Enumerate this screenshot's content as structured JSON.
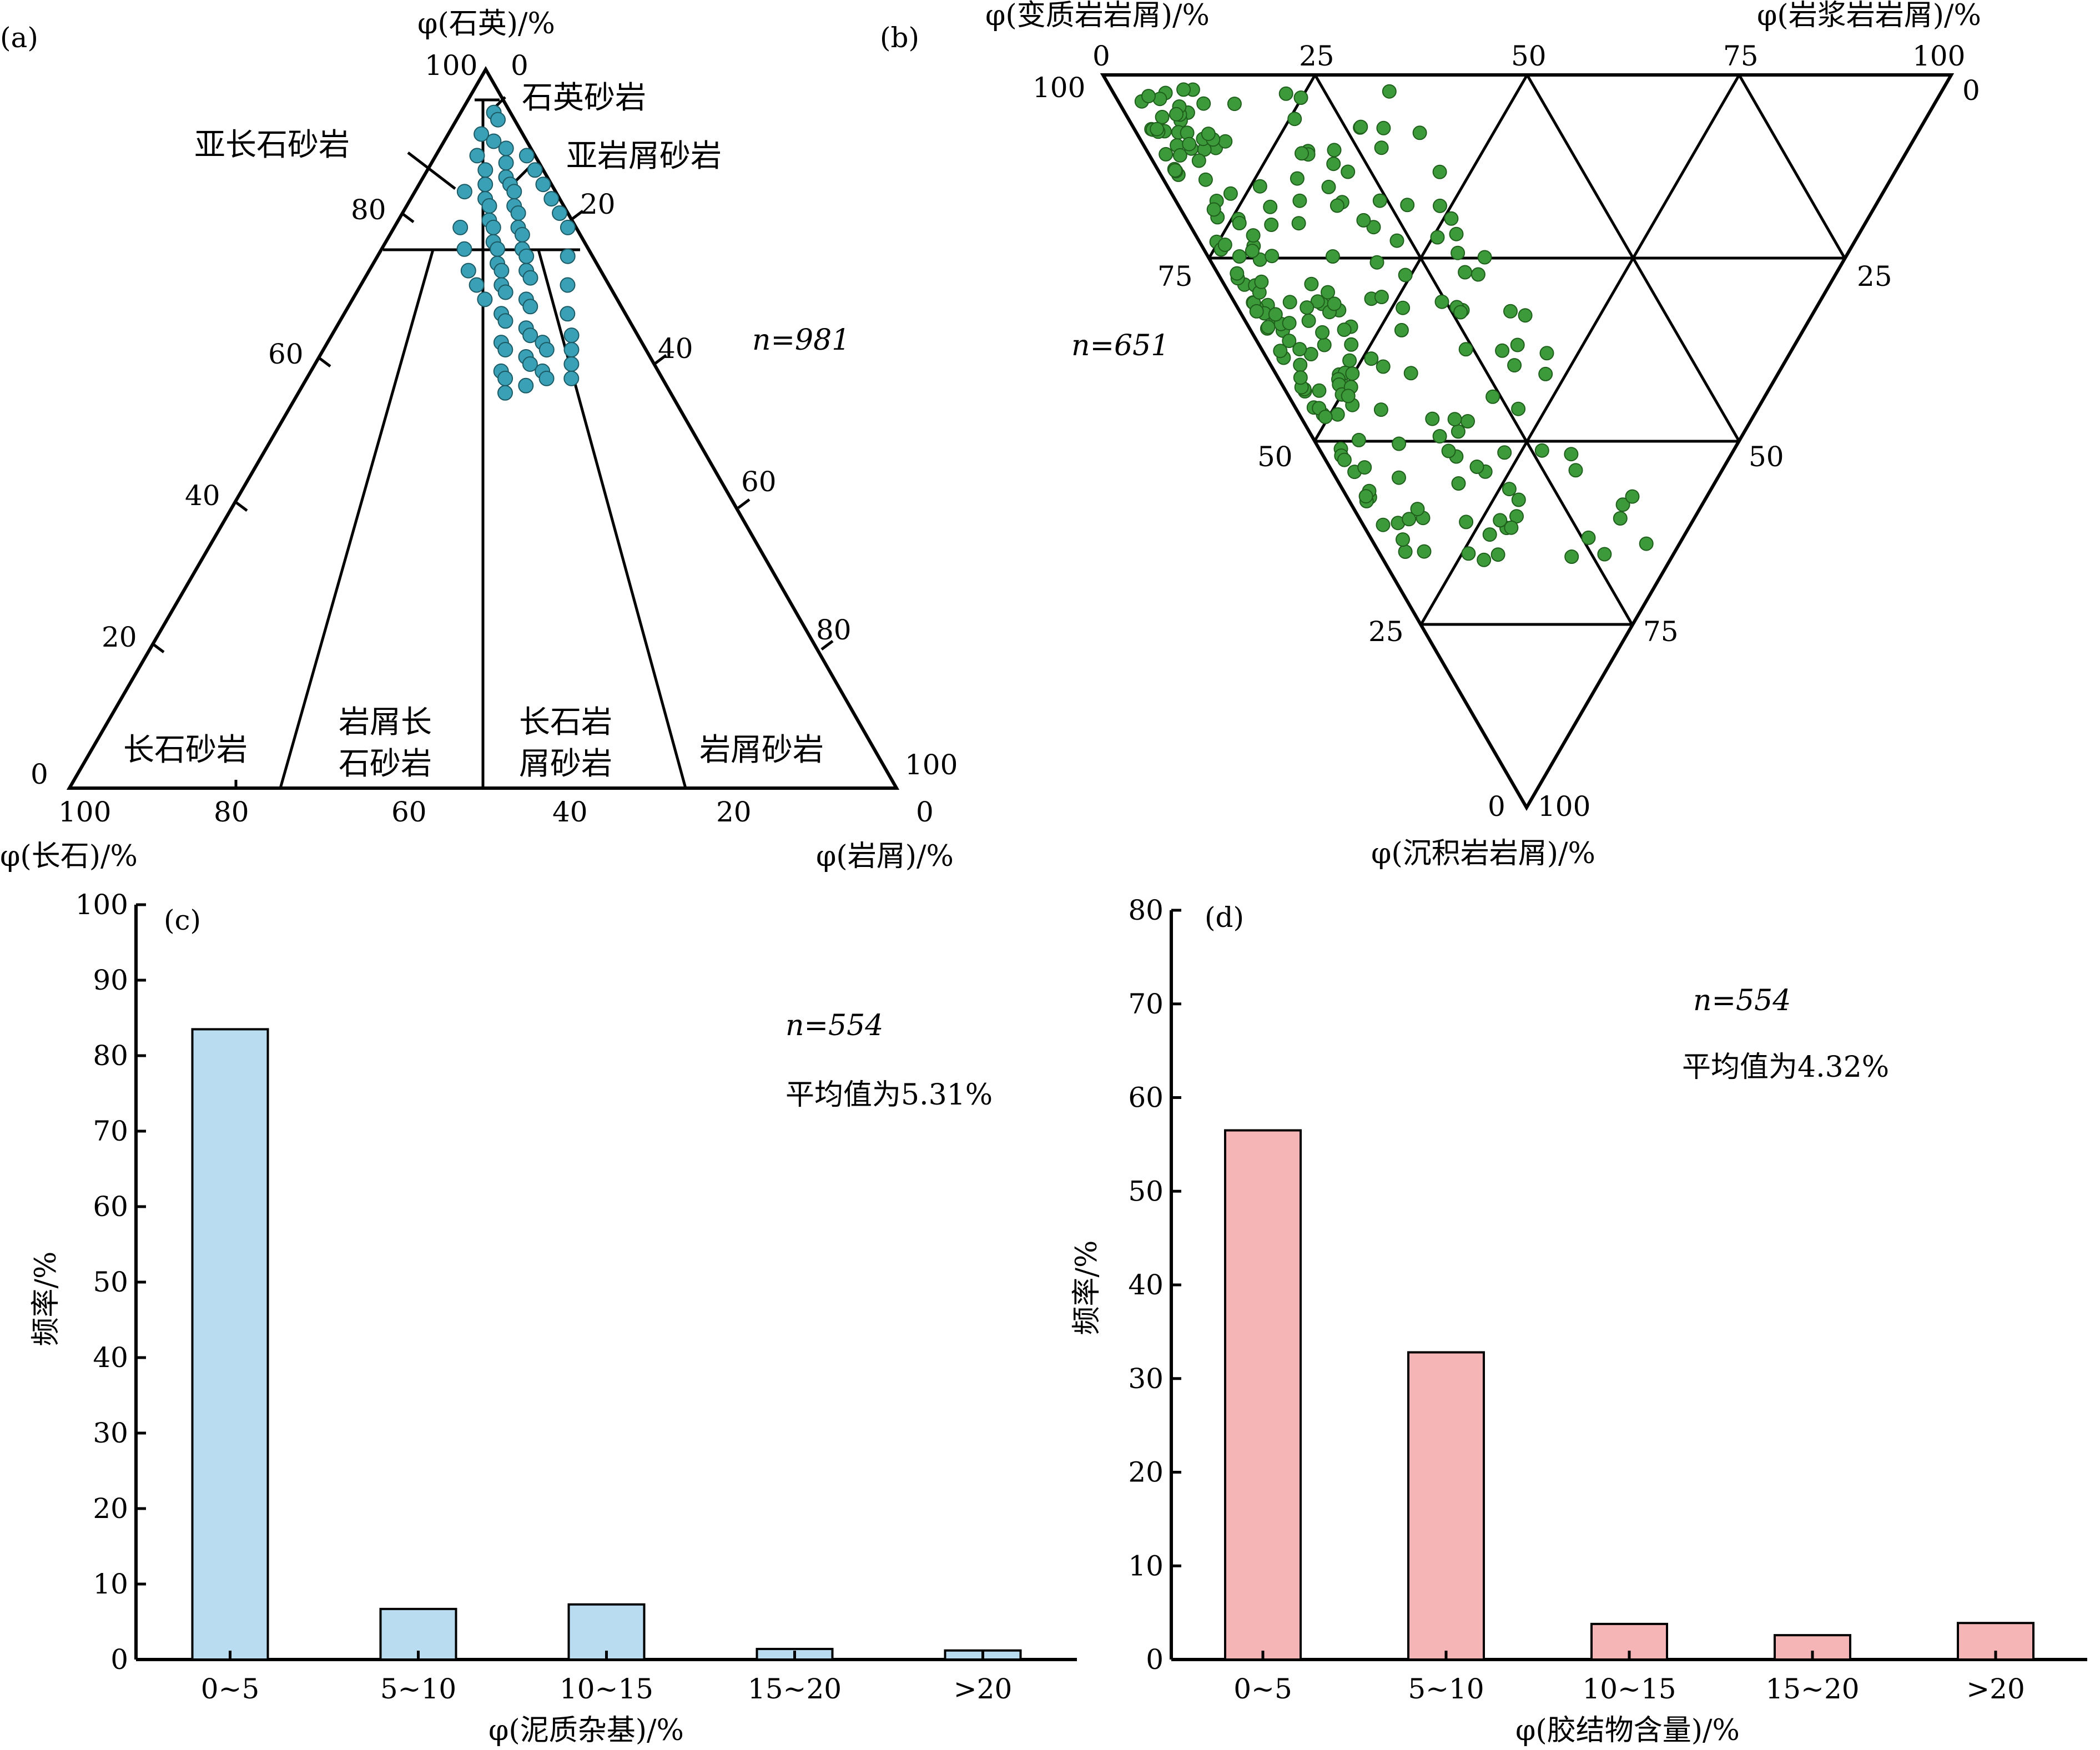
{
  "chart_data": [
    {
      "panel": "(a)",
      "type": "scatter",
      "subtype": "ternary",
      "axes": {
        "top": "φ(石英)/%",
        "left": "φ(长石)/%",
        "right": "φ(岩屑)/%"
      },
      "n_label": "n=981",
      "field_labels": [
        "石英砂岩",
        "亚长石砂岩",
        "亚岩屑砂岩",
        "长石砂岩",
        "岩屑长石砂岩",
        "长石岩屑砂岩",
        "岩屑砂岩"
      ],
      "point_color": "#3aa0b5",
      "points": [
        [
          4,
          0.94
        ],
        [
          5,
          0.93
        ],
        [
          4,
          0.91
        ],
        [
          6,
          0.9
        ],
        [
          5,
          0.88
        ],
        [
          8,
          0.89
        ],
        [
          7,
          0.86
        ],
        [
          9,
          0.87
        ],
        [
          10,
          0.85
        ],
        [
          8,
          0.84
        ],
        [
          11,
          0.84
        ],
        [
          12,
          0.83
        ],
        [
          9,
          0.82
        ],
        [
          10,
          0.81
        ],
        [
          13,
          0.81
        ],
        [
          14,
          0.8
        ],
        [
          11,
          0.79
        ],
        [
          12,
          0.78
        ],
        [
          15,
          0.78
        ],
        [
          16,
          0.77
        ],
        [
          13,
          0.76
        ],
        [
          14,
          0.75
        ],
        [
          17,
          0.75
        ],
        [
          18,
          0.74
        ],
        [
          15,
          0.73
        ],
        [
          16,
          0.72
        ],
        [
          19,
          0.72
        ],
        [
          20,
          0.71
        ],
        [
          17,
          0.7
        ],
        [
          18,
          0.69
        ],
        [
          21,
          0.68
        ],
        [
          22,
          0.67
        ],
        [
          19,
          0.66
        ],
        [
          20,
          0.65
        ],
        [
          23,
          0.64
        ],
        [
          24,
          0.63
        ],
        [
          21,
          0.62
        ],
        [
          22,
          0.61
        ],
        [
          25,
          0.6
        ],
        [
          26,
          0.59
        ],
        [
          23,
          0.58
        ],
        [
          24,
          0.57
        ],
        [
          27,
          0.56
        ],
        [
          25,
          0.55
        ],
        [
          28,
          0.58
        ],
        [
          29,
          0.57
        ],
        [
          26,
          0.62
        ],
        [
          27,
          0.61
        ],
        [
          6,
          0.83
        ],
        [
          8,
          0.78
        ],
        [
          10,
          0.75
        ],
        [
          12,
          0.72
        ],
        [
          14,
          0.7
        ],
        [
          16,
          0.68
        ],
        [
          11,
          0.88
        ],
        [
          13,
          0.86
        ],
        [
          15,
          0.84
        ],
        [
          17,
          0.82
        ],
        [
          19,
          0.8
        ],
        [
          21,
          0.78
        ],
        [
          23,
          0.74
        ],
        [
          25,
          0.7
        ],
        [
          27,
          0.66
        ],
        [
          29,
          0.63
        ],
        [
          30,
          0.61
        ],
        [
          31,
          0.59
        ],
        [
          32,
          0.57
        ]
      ],
      "tick_labels": {
        "top_scale": [
          "100",
          "80",
          "60",
          "40",
          "20",
          "0"
        ],
        "right_scale": [
          "0",
          "20",
          "40",
          "60",
          "80",
          "100"
        ],
        "bottom": [
          "100",
          "80",
          "60",
          "40",
          "20",
          "0"
        ]
      }
    },
    {
      "panel": "(b)",
      "type": "scatter",
      "subtype": "ternary",
      "axes": {
        "top_left": "φ(变质岩岩屑)/%",
        "top_right": "φ(岩浆岩岩屑)/%",
        "bottom": "φ(沉积岩岩屑)/%"
      },
      "n_label": "n=651",
      "point_color": "#3d9a3a",
      "tick_labels": {
        "top": [
          "0",
          "25",
          "50",
          "75",
          "100"
        ],
        "left": [
          "100",
          "75",
          "50",
          "25",
          "0"
        ],
        "right": [
          "0",
          "25",
          "50",
          "75",
          "100"
        ]
      }
    },
    {
      "panel": "(c)",
      "type": "bar",
      "categories": [
        "0~5",
        "5~10",
        "10~15",
        "15~20",
        ">20"
      ],
      "values": [
        83.5,
        6.7,
        7.3,
        1.4,
        1.2
      ],
      "ylabel": "频率/%",
      "xlabel": "φ(泥质杂基)/%",
      "ylim": [
        0,
        100
      ],
      "yticks": [
        "0",
        "10",
        "20",
        "30",
        "40",
        "50",
        "60",
        "70",
        "80",
        "90",
        "100"
      ],
      "n_label": "n=554",
      "mean_label": "平均值为5.31%",
      "bar_color": "#b9dcf0"
    },
    {
      "panel": "(d)",
      "type": "bar",
      "categories": [
        "0~5",
        "5~10",
        "10~15",
        "15~20",
        ">20"
      ],
      "values": [
        56.5,
        32.8,
        3.8,
        2.6,
        3.9
      ],
      "ylabel": "频率/%",
      "xlabel": "φ(胶结物含量)/%",
      "ylim": [
        0,
        80
      ],
      "yticks": [
        "0",
        "10",
        "20",
        "30",
        "40",
        "50",
        "60",
        "70",
        "80"
      ],
      "n_label": "n=554",
      "mean_label": "平均值为4.32%",
      "bar_color": "#f5b4b6"
    }
  ]
}
